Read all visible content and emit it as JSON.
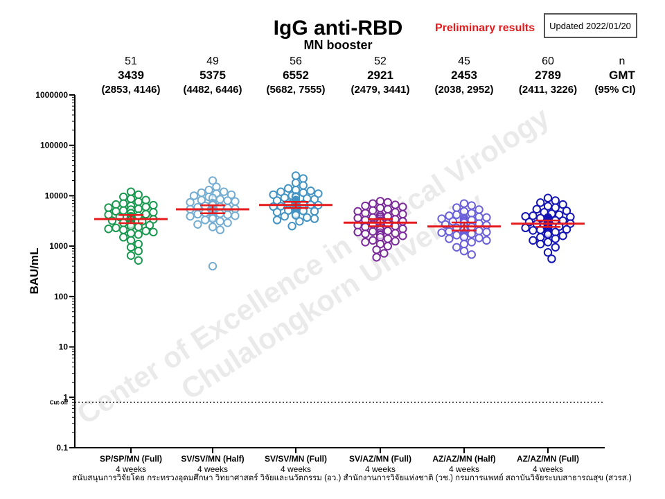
{
  "header": {
    "title": "IgG anti-RBD",
    "subtitle": "MN booster",
    "preliminary": "Preliminary results",
    "updated": "Updated 2022/01/20",
    "n_header": "n",
    "gmt_header": "GMT",
    "ci_header": "(95% CI)"
  },
  "watermark": {
    "line1": "Center of Excellence in Clinical Virology",
    "line2": "Chulalongkorn University"
  },
  "footer": {
    "text": "สนับสนุนการวิจัยโดย กระทรวงอุดมศึกษา วิทยาศาสตร์ วิจัยและนวัตกรรม (อว.) สำนักงานการวิจัยแห่งชาติ (วช.) กรมการแพทย์ สถาบันวิจัยระบบสาธารณสุข (สวรส.)"
  },
  "chart_data": {
    "type": "scatter",
    "title": "IgG anti-RBD",
    "subtitle": "MN booster",
    "ylabel": "BAU/mL",
    "xlabel": "",
    "yscale": "log",
    "ylim": [
      0.1,
      1000000
    ],
    "yticks": [
      "1000000",
      "100000",
      "10000",
      "1000",
      "100",
      "10",
      "1",
      "0.1"
    ],
    "cutoff": {
      "label": "Cut-off",
      "value": 0.8
    },
    "grid": false,
    "groups": [
      {
        "label": "SP/SP/MN (Full)",
        "sublabel": "4 weeks",
        "n": "51",
        "gmt": "3439",
        "ci": "(2853, 4146)",
        "gmt_value": 3439,
        "ci_low": 2853,
        "ci_high": 4146,
        "color": "#1a9850",
        "values": [
          12000,
          10500,
          9500,
          8700,
          8200,
          7600,
          7000,
          6700,
          6500,
          6300,
          6000,
          5800,
          5500,
          5300,
          5100,
          4900,
          4700,
          4500,
          4300,
          4200,
          4000,
          3900,
          3800,
          3700,
          3600,
          3500,
          3400,
          3300,
          3200,
          3100,
          3000,
          2900,
          2800,
          2700,
          2600,
          2500,
          2400,
          2300,
          2200,
          2100,
          2000,
          1900,
          1800,
          1700,
          1500,
          1300,
          1100,
          950,
          800,
          650,
          520
        ]
      },
      {
        "label": "SV/SV/MN (Half)",
        "sublabel": "4 weeks",
        "n": "49",
        "gmt": "5375",
        "ci": "(4482, 6446)",
        "gmt_value": 5375,
        "ci_low": 4482,
        "ci_high": 6446,
        "color": "#74add1",
        "values": [
          20000,
          15000,
          13000,
          12000,
          11500,
          11000,
          10500,
          10000,
          9500,
          9000,
          8500,
          8200,
          8000,
          7700,
          7400,
          7100,
          6800,
          6500,
          6300,
          6100,
          5900,
          5700,
          5500,
          5400,
          5300,
          5200,
          5100,
          5000,
          4900,
          4800,
          4700,
          4600,
          4500,
          4400,
          4300,
          4200,
          4100,
          4000,
          3900,
          3800,
          3700,
          3500,
          3300,
          3100,
          2900,
          2700,
          2400,
          2100,
          400
        ]
      },
      {
        "label": "SV/SV/MN (Full)",
        "sublabel": "4 weeks",
        "n": "56",
        "gmt": "6552",
        "ci": "(5682, 7555)",
        "gmt_value": 6552,
        "ci_low": 5682,
        "ci_high": 7555,
        "color": "#4393c3",
        "values": [
          25000,
          22000,
          18000,
          16000,
          14000,
          13000,
          12500,
          12000,
          11500,
          11000,
          10500,
          10000,
          9700,
          9400,
          9100,
          8800,
          8500,
          8200,
          8000,
          7800,
          7600,
          7400,
          7200,
          7000,
          6900,
          6800,
          6700,
          6600,
          6500,
          6400,
          6300,
          6200,
          6100,
          6000,
          5900,
          5800,
          5700,
          5600,
          5500,
          5400,
          5300,
          5200,
          5100,
          5000,
          4900,
          4800,
          4700,
          4500,
          4300,
          4100,
          3900,
          3700,
          3500,
          3300,
          3100,
          2500
        ]
      },
      {
        "label": "SV/AZ/MN (Full)",
        "sublabel": "4 weeks",
        "n": "52",
        "gmt": "2921",
        "ci": "(2479, 3441)",
        "gmt_value": 2921,
        "ci_low": 2479,
        "ci_high": 3441,
        "color": "#7b2a9a",
        "values": [
          7800,
          7400,
          7000,
          6600,
          6300,
          6000,
          5700,
          5400,
          5100,
          4900,
          4700,
          4500,
          4300,
          4100,
          3900,
          3800,
          3700,
          3600,
          3500,
          3400,
          3300,
          3200,
          3100,
          3000,
          2900,
          2800,
          2700,
          2600,
          2500,
          2400,
          2300,
          2200,
          2100,
          2000,
          1950,
          1900,
          1850,
          1800,
          1750,
          1700,
          1650,
          1600,
          1500,
          1400,
          1300,
          1250,
          1200,
          1100,
          1000,
          850,
          720,
          600
        ]
      },
      {
        "label": "AZ/AZ/MN (Half)",
        "sublabel": "4 weeks",
        "n": "45",
        "gmt": "2453",
        "ci": "(2038, 2952)",
        "gmt_value": 2453,
        "ci_low": 2038,
        "ci_high": 2952,
        "color": "#6a60d9",
        "values": [
          7000,
          6400,
          5800,
          5300,
          4900,
          4500,
          4200,
          4000,
          3800,
          3700,
          3600,
          3500,
          3400,
          3300,
          3200,
          3100,
          3000,
          2900,
          2800,
          2700,
          2600,
          2500,
          2400,
          2300,
          2200,
          2100,
          2000,
          1950,
          1900,
          1850,
          1800,
          1750,
          1700,
          1650,
          1600,
          1550,
          1500,
          1450,
          1400,
          1300,
          1200,
          1100,
          950,
          800,
          680
        ]
      },
      {
        "label": "AZ/AZ/MN (Full)",
        "sublabel": "4 weeks",
        "n": "60",
        "gmt": "2789",
        "ci": "(2411, 3226)",
        "gmt_value": 2789,
        "ci_low": 2411,
        "ci_high": 3226,
        "color": "#1414b4",
        "values": [
          9000,
          8000,
          7300,
          6700,
          6200,
          5800,
          5400,
          5000,
          4700,
          4400,
          4200,
          4000,
          3900,
          3800,
          3700,
          3600,
          3500,
          3400,
          3350,
          3300,
          3250,
          3200,
          3150,
          3100,
          3050,
          3000,
          2950,
          2900,
          2850,
          2800,
          2750,
          2700,
          2650,
          2600,
          2550,
          2500,
          2450,
          2400,
          2350,
          2300,
          2250,
          2200,
          2150,
          2100,
          2050,
          2000,
          1950,
          1900,
          1850,
          1800,
          1700,
          1600,
          1500,
          1400,
          1300,
          1200,
          1100,
          950,
          750,
          560
        ]
      }
    ]
  }
}
